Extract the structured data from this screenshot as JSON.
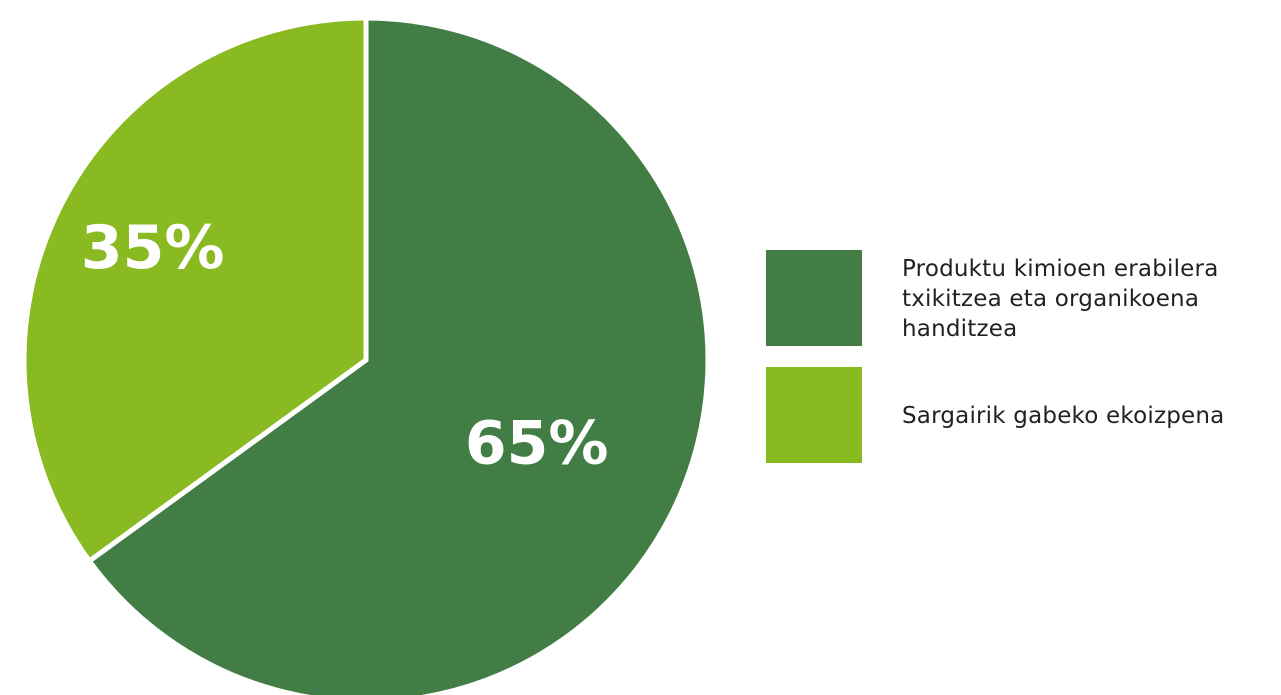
{
  "chart_data": {
    "type": "pie",
    "title": "",
    "slices": [
      {
        "name": "Produktu kimioen erabilera txikitzea eta organikoena handitzea",
        "value": 65,
        "label": "65%",
        "color": "#417d44"
      },
      {
        "name": "Sargairik gabeko ekoizpena",
        "value": 35,
        "label": "35%",
        "color": "#8aba21"
      }
    ],
    "start_angle_deg": 0,
    "direction": "clockwise",
    "legend_position": "right"
  }
}
